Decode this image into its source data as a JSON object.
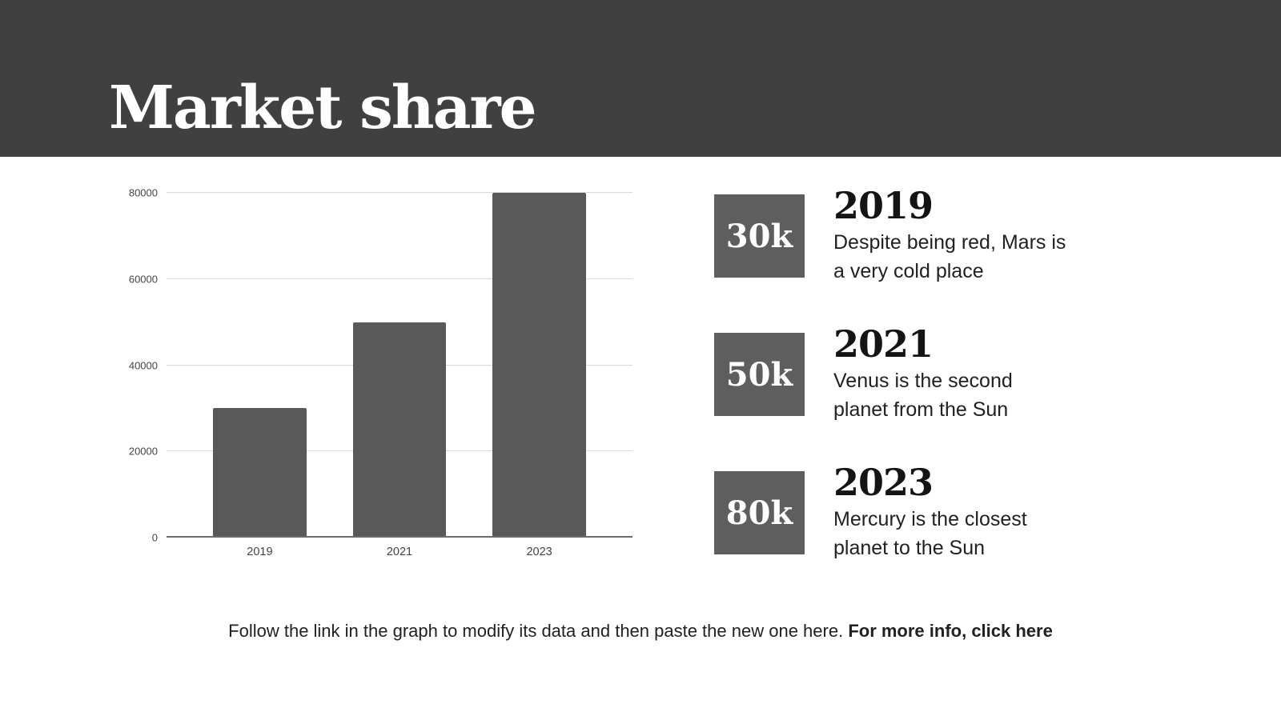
{
  "slide": {
    "title": "Market share",
    "footer": {
      "text": "Follow the link in the graph to modify its data and then paste the new one here. ",
      "link": "For more info, click here"
    }
  },
  "chart_data": {
    "type": "bar",
    "title": "",
    "xlabel": "",
    "ylabel": "",
    "categories": [
      "2019",
      "2021",
      "2023"
    ],
    "values": [
      30000,
      50000,
      80000
    ],
    "yticks": [
      0,
      20000,
      40000,
      60000,
      80000
    ],
    "ylim": [
      0,
      80000
    ],
    "grid": true,
    "legend": "none",
    "bar_color": "#595959",
    "gridline_color": "#d9d9d9",
    "axis_line_color": "#6b6b6b",
    "tick_label_color": "#444444"
  },
  "callouts": [
    {
      "badge": "30k",
      "year": "2019",
      "description": "Despite being red, Mars is\na very cold place"
    },
    {
      "badge": "50k",
      "year": "2021",
      "description": "Venus is the second\nplanet from the Sun"
    },
    {
      "badge": "80k",
      "year": "2023",
      "description": "Mercury is the closest\nplanet to the Sun"
    }
  ],
  "theme": {
    "header_bg": "#404040",
    "title_color": "#ffffff",
    "badge_bg": "#5e5e5e",
    "badge_text_color": "#ffffff",
    "heading_color": "#141414",
    "body_color": "#212121",
    "background": "#ffffff"
  }
}
